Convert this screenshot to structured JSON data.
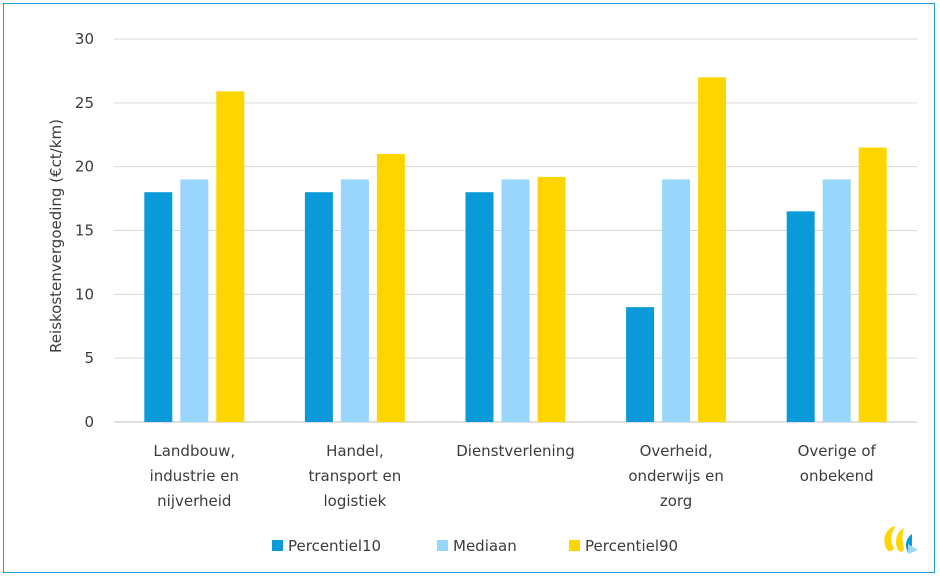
{
  "chart_data": {
    "type": "bar",
    "ylabel": "Reiskostenvergoeding (€ct/km)",
    "ylim": [
      0,
      30
    ],
    "yticks": [
      0,
      5,
      10,
      15,
      20,
      25,
      30
    ],
    "grid": true,
    "legend_position": "bottom",
    "categories": [
      [
        "Landbouw,",
        "industrie en",
        "nijverheid"
      ],
      [
        "Handel,",
        "transport en",
        "logistiek"
      ],
      [
        "Dienstverlening"
      ],
      [
        "Overheid,",
        "onderwijs en",
        "zorg"
      ],
      [
        "Overige of",
        "onbekend"
      ]
    ],
    "series": [
      {
        "name": "Percentiel10",
        "color": "#0a9ad9",
        "values": [
          18,
          18,
          18,
          9,
          16.5
        ]
      },
      {
        "name": "Mediaan",
        "color": "#99d6fb",
        "values": [
          19,
          19,
          19,
          19,
          19
        ]
      },
      {
        "name": "Percentiel90",
        "color": "#ffd500",
        "values": [
          25.9,
          21,
          19.2,
          27,
          21.5
        ]
      }
    ]
  },
  "logo": {
    "icon": "company-logo-icon",
    "colors": [
      "#ffd500",
      "#99d6fb",
      "#0a9ad9"
    ]
  }
}
